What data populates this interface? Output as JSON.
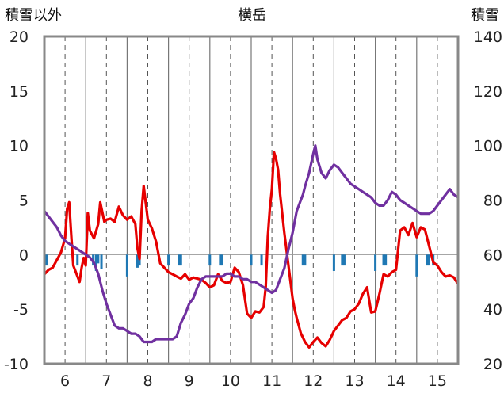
{
  "chart_data": {
    "type": "line",
    "title": "横岳",
    "ylabel_left": "積雪以外",
    "ylabel_right": "積雪",
    "xlabel": "",
    "xlim": [
      5.5,
      15.5
    ],
    "ylim_left": [
      -10,
      20
    ],
    "ylim_right": [
      20,
      140
    ],
    "xticks": [
      "6",
      "7",
      "8",
      "9",
      "10",
      "11",
      "12",
      "13",
      "14",
      "15"
    ],
    "yticks_left": [
      "-10",
      "-5",
      "0",
      "5",
      "10",
      "15",
      "20"
    ],
    "yticks_right": [
      "20",
      "40",
      "60",
      "80",
      "100",
      "120",
      "140"
    ],
    "grid": "vertical dashed at half days, solid at day boundaries",
    "series": [
      {
        "axis": "left",
        "color": "#e60000",
        "x": [
          5.5,
          5.6,
          5.7,
          5.8,
          5.9,
          6.0,
          6.05,
          6.1,
          6.15,
          6.2,
          6.3,
          6.35,
          6.4,
          6.45,
          6.5,
          6.55,
          6.6,
          6.7,
          6.8,
          6.85,
          6.95,
          7.0,
          7.1,
          7.2,
          7.3,
          7.4,
          7.45,
          7.5,
          7.6,
          7.7,
          7.75,
          7.8,
          7.85,
          7.9,
          8.0,
          8.1,
          8.2,
          8.3,
          8.4,
          8.5,
          8.6,
          8.7,
          8.8,
          8.9,
          9.0,
          9.1,
          9.2,
          9.3,
          9.4,
          9.5,
          9.6,
          9.7,
          9.8,
          9.9,
          10.0,
          10.1,
          10.2,
          10.3,
          10.4,
          10.5,
          10.6,
          10.7,
          10.8,
          10.85,
          10.9,
          10.95,
          11.0,
          11.05,
          11.1,
          11.15,
          11.2,
          11.3,
          11.4,
          11.5,
          11.55,
          11.6,
          11.65,
          11.7,
          11.8,
          11.9,
          12.0,
          12.1,
          12.2,
          12.3,
          12.4,
          12.5,
          12.6,
          12.7,
          12.8,
          12.9,
          13.0,
          13.1,
          13.2,
          13.3,
          13.4,
          13.5,
          13.6,
          13.7,
          13.8,
          13.9,
          14.0,
          14.1,
          14.2,
          14.3,
          14.4,
          14.5,
          14.6,
          14.7,
          14.8,
          14.9,
          15.0,
          15.1,
          15.2,
          15.3,
          15.4,
          15.5
        ],
        "y": [
          -1.8,
          -1.4,
          -1.2,
          -0.5,
          0.2,
          1.5,
          4.2,
          4.8,
          1.8,
          -1.0,
          -2.0,
          -2.5,
          -1.2,
          -0.3,
          -1.0,
          3.8,
          2.2,
          1.5,
          2.8,
          4.8,
          3.0,
          3.2,
          3.3,
          3.0,
          4.4,
          3.6,
          3.4,
          3.2,
          3.5,
          2.8,
          0.6,
          -0.4,
          4.0,
          6.3,
          3.2,
          2.4,
          1.2,
          -0.8,
          -1.2,
          -1.6,
          -1.8,
          -2.0,
          -2.2,
          -1.8,
          -2.3,
          -2.1,
          -2.2,
          -2.3,
          -2.6,
          -3.0,
          -2.8,
          -1.8,
          -2.4,
          -2.6,
          -2.5,
          -1.2,
          -1.6,
          -2.8,
          -5.4,
          -5.8,
          -5.2,
          -5.3,
          -4.8,
          -3.0,
          1.6,
          4.2,
          6.0,
          9.4,
          8.8,
          7.8,
          5.5,
          2.0,
          -1.0,
          -4.0,
          -5.0,
          -5.8,
          -6.5,
          -7.2,
          -8.0,
          -8.5,
          -8.0,
          -7.6,
          -8.1,
          -8.4,
          -7.8,
          -7.0,
          -6.5,
          -6.0,
          -5.8,
          -5.2,
          -5.0,
          -4.5,
          -3.6,
          -3.0,
          -5.3,
          -5.2,
          -3.6,
          -1.8,
          -2.0,
          -1.6,
          -1.4,
          2.2,
          2.5,
          1.8,
          2.9,
          1.6,
          2.5,
          2.3,
          0.8,
          -0.7,
          -1.0,
          -1.6,
          -2.0,
          -1.9,
          -2.1,
          -2.7
        ]
      },
      {
        "axis": "right",
        "color": "#7030a0",
        "x": [
          5.5,
          5.6,
          5.7,
          5.8,
          5.9,
          6.0,
          6.1,
          6.2,
          6.3,
          6.4,
          6.5,
          6.6,
          6.7,
          6.8,
          6.9,
          7.0,
          7.1,
          7.2,
          7.3,
          7.4,
          7.5,
          7.6,
          7.7,
          7.8,
          7.9,
          8.0,
          8.1,
          8.2,
          8.3,
          8.4,
          8.5,
          8.6,
          8.7,
          8.8,
          8.9,
          9.0,
          9.1,
          9.2,
          9.3,
          9.4,
          9.5,
          9.6,
          9.7,
          9.8,
          9.9,
          10.0,
          10.1,
          10.2,
          10.3,
          10.4,
          10.5,
          10.6,
          10.7,
          10.8,
          10.9,
          11.0,
          11.1,
          11.2,
          11.3,
          11.4,
          11.5,
          11.6,
          11.7,
          11.75,
          11.8,
          11.9,
          12.0,
          12.05,
          12.1,
          12.2,
          12.3,
          12.4,
          12.5,
          12.6,
          12.7,
          12.8,
          12.9,
          13.0,
          13.1,
          13.2,
          13.3,
          13.4,
          13.5,
          13.6,
          13.7,
          13.8,
          13.9,
          14.0,
          14.1,
          14.2,
          14.3,
          14.4,
          14.5,
          14.6,
          14.7,
          14.8,
          14.9,
          15.0,
          15.1,
          15.2,
          15.3,
          15.4,
          15.5
        ],
        "y": [
          76,
          74,
          72,
          70,
          67,
          65,
          64,
          63,
          62,
          61,
          60,
          59,
          57,
          53,
          47,
          42,
          38,
          34,
          33,
          33,
          32,
          31,
          31,
          30,
          28,
          28,
          28,
          29,
          29,
          29,
          29,
          29,
          30,
          35,
          38,
          42,
          44,
          48,
          51,
          52,
          52,
          52,
          52,
          52,
          53,
          53,
          52,
          52,
          51,
          51,
          50,
          50,
          49,
          48,
          47,
          46,
          47,
          51,
          55,
          62,
          68,
          76,
          80,
          82,
          85,
          90,
          97,
          100,
          95,
          90,
          88,
          91,
          93,
          92,
          90,
          88,
          86,
          85,
          84,
          83,
          82,
          81,
          79,
          78,
          78,
          80,
          83,
          82,
          80,
          79,
          78,
          77,
          76,
          75,
          75,
          75,
          76,
          78,
          80,
          82,
          84,
          82,
          81
        ]
      }
    ],
    "precipitation_bars": {
      "axis": "left",
      "color": "#1f78b4",
      "x": [
        5.55,
        6.3,
        6.68,
        6.75,
        6.8,
        6.88,
        7.5,
        7.75,
        7.8,
        8.5,
        8.75,
        8.8,
        9.5,
        9.75,
        9.8,
        10.5,
        10.75,
        11.75,
        11.8,
        12.5,
        12.7,
        12.75,
        13.5,
        13.7,
        13.75,
        14.5,
        14.75,
        14.8,
        14.9
      ],
      "y": [
        -1.0,
        -1.0,
        -1.0,
        -1.5,
        -0.8,
        -1.3,
        -2.0,
        -1.2,
        -1.0,
        -1.0,
        -1.0,
        -1.0,
        -1.0,
        -1.0,
        -1.0,
        -1.0,
        -1.0,
        -1.0,
        -1.0,
        -1.5,
        -1.0,
        -1.0,
        -1.5,
        -1.0,
        -1.0,
        -2.0,
        -1.0,
        -1.0,
        -1.0
      ]
    }
  }
}
